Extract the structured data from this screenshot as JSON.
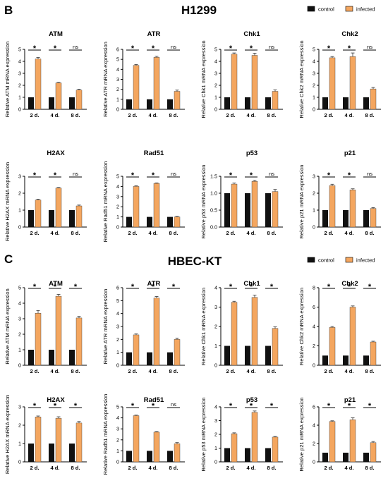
{
  "colors": {
    "control": "#111111",
    "infected": "#f4a65f",
    "axis": "#000000"
  },
  "panels": [
    {
      "letter": "B",
      "title": "H1299",
      "legend": [
        "control",
        "infected"
      ],
      "charts": [
        {
          "type": "bar",
          "title": "ATM",
          "ylabel": "Relative ATM mRNA expression",
          "categories": [
            "2 d.",
            "4 d.",
            "8 d."
          ],
          "ylim": [
            0,
            5
          ],
          "yticks": [
            0,
            1,
            2,
            3,
            4,
            5
          ],
          "series": [
            {
              "name": "control",
              "values": [
                1,
                1,
                1
              ]
            },
            {
              "name": "infected",
              "values": [
                4.2,
                2.2,
                1.6
              ]
            }
          ],
          "errors": [
            0.12,
            0.05,
            0.08
          ],
          "significance": [
            "*",
            "*",
            "ns"
          ]
        },
        {
          "type": "bar",
          "title": "ATR",
          "ylabel": "Relative ATR mRNA expression",
          "categories": [
            "2 d.",
            "4 d.",
            "8 d."
          ],
          "ylim": [
            0,
            6
          ],
          "yticks": [
            0,
            1,
            2,
            3,
            4,
            5,
            6
          ],
          "series": [
            {
              "name": "control",
              "values": [
                1,
                1,
                1
              ]
            },
            {
              "name": "infected",
              "values": [
                4.4,
                5.2,
                1.8
              ]
            }
          ],
          "errors": [
            0.08,
            0.1,
            0.12
          ],
          "significance": [
            "*",
            "*",
            "ns"
          ]
        },
        {
          "type": "bar",
          "title": "Chk1",
          "ylabel": "Relative Chk1 mRNA expression",
          "categories": [
            "2 d.",
            "4 d.",
            "8 d."
          ],
          "ylim": [
            0,
            5
          ],
          "yticks": [
            0,
            1,
            2,
            3,
            4,
            5
          ],
          "series": [
            {
              "name": "control",
              "values": [
                1,
                1,
                1
              ]
            },
            {
              "name": "infected",
              "values": [
                4.6,
                4.5,
                1.5
              ]
            }
          ],
          "errors": [
            0.1,
            0.18,
            0.12
          ],
          "significance": [
            "*",
            "*",
            "ns"
          ]
        },
        {
          "type": "bar",
          "title": "Chk2",
          "ylabel": "Relative Chk2 mRNA expression",
          "categories": [
            "2 d.",
            "4 d.",
            "8 d."
          ],
          "ylim": [
            0,
            5
          ],
          "yticks": [
            0,
            1,
            2,
            3,
            4,
            5
          ],
          "series": [
            {
              "name": "control",
              "values": [
                1,
                1,
                1
              ]
            },
            {
              "name": "infected",
              "values": [
                4.3,
                4.4,
                1.7
              ]
            }
          ],
          "errors": [
            0.1,
            0.3,
            0.12
          ],
          "significance": [
            "*",
            "*",
            "ns"
          ]
        },
        {
          "type": "bar",
          "title": "H2AX",
          "ylabel": "Relative H2AX mRNA expression",
          "categories": [
            "2 d.",
            "4 d.",
            "8 d."
          ],
          "ylim": [
            0,
            3
          ],
          "yticks": [
            0,
            1,
            2,
            3
          ],
          "series": [
            {
              "name": "control",
              "values": [
                1,
                1,
                1
              ]
            },
            {
              "name": "infected",
              "values": [
                1.6,
                2.3,
                1.25
              ]
            }
          ],
          "errors": [
            0.05,
            0.04,
            0.05
          ],
          "significance": [
            "*",
            "*",
            "ns"
          ]
        },
        {
          "type": "bar",
          "title": "Rad51",
          "ylabel": "Relative Rad51 mRNA expression",
          "categories": [
            "2 d.",
            "4 d.",
            "8 d."
          ],
          "ylim": [
            0,
            5
          ],
          "yticks": [
            0,
            1,
            2,
            3,
            4,
            5
          ],
          "series": [
            {
              "name": "control",
              "values": [
                1,
                1,
                1
              ]
            },
            {
              "name": "infected",
              "values": [
                4.0,
                4.3,
                1.0
              ]
            }
          ],
          "errors": [
            0.06,
            0.05,
            0.05
          ],
          "significance": [
            "*",
            "*",
            "ns"
          ]
        },
        {
          "type": "bar",
          "title": "p53",
          "ylabel": "Relative p53 mRNA expression",
          "categories": [
            "2 d.",
            "4 d.",
            "8 d."
          ],
          "ylim": [
            0,
            1.5
          ],
          "yticks": [
            0,
            0.5,
            1.0,
            1.5
          ],
          "ytick_labels": [
            "0.0",
            "0.5",
            "1.0",
            "1.5"
          ],
          "series": [
            {
              "name": "control",
              "values": [
                1,
                1,
                1
              ]
            },
            {
              "name": "infected",
              "values": [
                1.27,
                1.35,
                1.05
              ]
            }
          ],
          "errors": [
            0.03,
            0.03,
            0.06
          ],
          "significance": [
            "*",
            "*",
            "ns"
          ]
        },
        {
          "type": "bar",
          "title": "p21",
          "ylabel": "Relative p21 mRNA expression",
          "categories": [
            "2 d.",
            "4 d.",
            "8 d."
          ],
          "ylim": [
            0,
            3
          ],
          "yticks": [
            0,
            1,
            2,
            3
          ],
          "series": [
            {
              "name": "control",
              "values": [
                1,
                1,
                1
              ]
            },
            {
              "name": "infected",
              "values": [
                2.45,
                2.2,
                1.1
              ]
            }
          ],
          "errors": [
            0.08,
            0.06,
            0.05
          ],
          "significance": [
            "*",
            "*",
            "ns"
          ]
        }
      ]
    },
    {
      "letter": "C",
      "title": "HBEC-KT",
      "legend": [
        "control",
        "infected"
      ],
      "charts": [
        {
          "type": "bar",
          "title": "ATM",
          "ylabel": "Relative ATM mRNA expression",
          "categories": [
            "2 d.",
            "4 d.",
            "8 d."
          ],
          "ylim": [
            0,
            5
          ],
          "yticks": [
            0,
            1,
            2,
            3,
            4,
            5
          ],
          "series": [
            {
              "name": "control",
              "values": [
                1,
                1,
                1
              ]
            },
            {
              "name": "infected",
              "values": [
                3.35,
                4.45,
                3.05
              ]
            }
          ],
          "errors": [
            0.18,
            0.12,
            0.1
          ],
          "significance": [
            "*",
            "*",
            "*"
          ]
        },
        {
          "type": "bar",
          "title": "ATR",
          "ylabel": "Relative ATR mRNA expression",
          "categories": [
            "2 d.",
            "4 d.",
            "8 d."
          ],
          "ylim": [
            0,
            6
          ],
          "yticks": [
            0,
            1,
            2,
            3,
            4,
            5,
            6
          ],
          "series": [
            {
              "name": "control",
              "values": [
                1,
                1,
                1
              ]
            },
            {
              "name": "infected",
              "values": [
                2.35,
                5.2,
                2.0
              ]
            }
          ],
          "errors": [
            0.08,
            0.12,
            0.1
          ],
          "significance": [
            "*",
            "*",
            "*"
          ]
        },
        {
          "type": "bar",
          "title": "Chk1",
          "ylabel": "Relative Chk1 mRNA expression",
          "categories": [
            "2 d.",
            "4 d.",
            "8 d."
          ],
          "ylim": [
            0,
            4
          ],
          "yticks": [
            0,
            1,
            2,
            3,
            4
          ],
          "series": [
            {
              "name": "control",
              "values": [
                1,
                1,
                1
              ]
            },
            {
              "name": "infected",
              "values": [
                3.25,
                3.5,
                1.9
              ]
            }
          ],
          "errors": [
            0.05,
            0.12,
            0.08
          ],
          "significance": [
            "*",
            "*",
            "*"
          ]
        },
        {
          "type": "bar",
          "title": "Chk2",
          "ylabel": "Relative Chk2 mRNA expression",
          "categories": [
            "2 d.",
            "4 d.",
            "8 d."
          ],
          "ylim": [
            0,
            8
          ],
          "yticks": [
            0,
            2,
            4,
            6,
            8
          ],
          "series": [
            {
              "name": "control",
              "values": [
                1,
                1,
                1
              ]
            },
            {
              "name": "infected",
              "values": [
                3.9,
                6.0,
                2.4
              ]
            }
          ],
          "errors": [
            0.1,
            0.12,
            0.08
          ],
          "significance": [
            "*",
            "*",
            "*"
          ]
        },
        {
          "type": "bar",
          "title": "H2AX",
          "ylabel": "Relative H2AX mRNA expression",
          "categories": [
            "2 d.",
            "4 d.",
            "8 d."
          ],
          "ylim": [
            0,
            3
          ],
          "yticks": [
            0,
            1,
            2,
            3
          ],
          "series": [
            {
              "name": "control",
              "values": [
                1,
                1,
                1
              ]
            },
            {
              "name": "infected",
              "values": [
                2.45,
                2.38,
                2.12
              ]
            }
          ],
          "errors": [
            0.05,
            0.08,
            0.08
          ],
          "significance": [
            "*",
            "*",
            "*"
          ]
        },
        {
          "type": "bar",
          "title": "Rad51",
          "ylabel": "Relative Rad51 mRNA expression",
          "categories": [
            "2 d.",
            "4 d.",
            "8 d."
          ],
          "ylim": [
            0,
            5
          ],
          "yticks": [
            0,
            1,
            2,
            3,
            4,
            5
          ],
          "series": [
            {
              "name": "control",
              "values": [
                1,
                1,
                1
              ]
            },
            {
              "name": "infected",
              "values": [
                4.2,
                2.7,
                1.65
              ]
            }
          ],
          "errors": [
            0.05,
            0.06,
            0.1
          ],
          "significance": [
            "*",
            "*",
            "ns"
          ]
        },
        {
          "type": "bar",
          "title": "p53",
          "ylabel": "Relative p53 mRNA expression",
          "categories": [
            "2 d.",
            "4 d.",
            "8 d."
          ],
          "ylim": [
            0,
            4
          ],
          "yticks": [
            0,
            1,
            2,
            3,
            4
          ],
          "series": [
            {
              "name": "control",
              "values": [
                1,
                1,
                1
              ]
            },
            {
              "name": "infected",
              "values": [
                2.05,
                3.6,
                1.8
              ]
            }
          ],
          "errors": [
            0.06,
            0.1,
            0.05
          ],
          "significance": [
            "*",
            "*",
            "*"
          ]
        },
        {
          "type": "bar",
          "title": "p21",
          "ylabel": "Relative p21 mRNA expression",
          "categories": [
            "2 d.",
            "4 d.",
            "8 d."
          ],
          "ylim": [
            0,
            6
          ],
          "yticks": [
            0,
            2,
            4,
            6
          ],
          "series": [
            {
              "name": "control",
              "values": [
                1,
                1,
                1
              ]
            },
            {
              "name": "infected",
              "values": [
                4.4,
                4.6,
                2.1
              ]
            }
          ],
          "errors": [
            0.08,
            0.2,
            0.12
          ],
          "significance": [
            "*",
            "*",
            "*"
          ]
        }
      ]
    }
  ]
}
